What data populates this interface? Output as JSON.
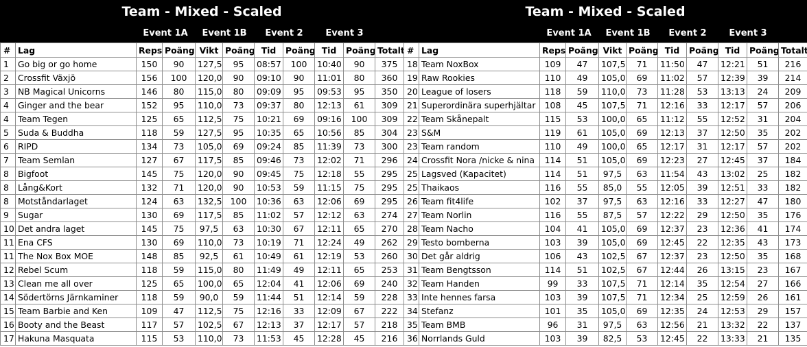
{
  "title": "Team - Mixed - Scaled",
  "events": [
    "Event 1A",
    "Event 1B",
    "Event 2",
    "Event 3"
  ],
  "columns": [
    "#",
    "Lag",
    "Reps",
    "Poäng",
    "Vikt",
    "Poäng",
    "Tid",
    "Poäng",
    "Tid",
    "Poäng",
    "Totalt"
  ],
  "left_rows": [
    [
      "1",
      "Go big or go home",
      "150",
      "90",
      "127,5",
      "95",
      "08:57",
      "100",
      "10:40",
      "90",
      "375"
    ],
    [
      "2",
      "Crossfit Växjö",
      "156",
      "100",
      "120,0",
      "90",
      "09:10",
      "90",
      "11:01",
      "80",
      "360"
    ],
    [
      "3",
      "NB Magical Unicorns",
      "146",
      "80",
      "115,0",
      "80",
      "09:09",
      "95",
      "09:53",
      "95",
      "350"
    ],
    [
      "4",
      "Ginger and the bear",
      "152",
      "95",
      "110,0",
      "73",
      "09:37",
      "80",
      "12:13",
      "61",
      "309"
    ],
    [
      "4",
      "Team Tegen",
      "125",
      "65",
      "112,5",
      "75",
      "10:21",
      "69",
      "09:16",
      "100",
      "309"
    ],
    [
      "5",
      "Suda & Buddha",
      "118",
      "59",
      "127,5",
      "95",
      "10:35",
      "65",
      "10:56",
      "85",
      "304"
    ],
    [
      "6",
      "RIPD",
      "134",
      "73",
      "105,0",
      "69",
      "09:24",
      "85",
      "11:39",
      "73",
      "300"
    ],
    [
      "7",
      "Team Semlan",
      "127",
      "67",
      "117,5",
      "85",
      "09:46",
      "73",
      "12:02",
      "71",
      "296"
    ],
    [
      "8",
      "Bigfoot",
      "145",
      "75",
      "120,0",
      "90",
      "09:45",
      "75",
      "12:18",
      "55",
      "295"
    ],
    [
      "8",
      "Lång&Kort",
      "132",
      "71",
      "120,0",
      "90",
      "10:53",
      "59",
      "11:15",
      "75",
      "295"
    ],
    [
      "8",
      "Motståndarlaget",
      "124",
      "63",
      "132,5",
      "100",
      "10:36",
      "63",
      "12:06",
      "69",
      "295"
    ],
    [
      "9",
      "Sugar",
      "130",
      "69",
      "117,5",
      "85",
      "11:02",
      "57",
      "12:12",
      "63",
      "274"
    ],
    [
      "10",
      "Det andra laget",
      "145",
      "75",
      "97,5",
      "63",
      "10:30",
      "67",
      "12:11",
      "65",
      "270"
    ],
    [
      "11",
      "Ena CFS",
      "130",
      "69",
      "110,0",
      "73",
      "10:19",
      "71",
      "12:24",
      "49",
      "262"
    ],
    [
      "11",
      "The Nox Box MOE",
      "148",
      "85",
      "92,5",
      "61",
      "10:49",
      "61",
      "12:19",
      "53",
      "260"
    ],
    [
      "12",
      "Rebel Scum",
      "118",
      "59",
      "115,0",
      "80",
      "11:49",
      "49",
      "12:11",
      "65",
      "253"
    ],
    [
      "13",
      "Clean me all over",
      "125",
      "65",
      "100,0",
      "65",
      "12:04",
      "41",
      "12:06",
      "69",
      "240"
    ],
    [
      "14",
      "Södertörns Järnkaminer",
      "118",
      "59",
      "90,0",
      "59",
      "11:44",
      "51",
      "12:14",
      "59",
      "228"
    ],
    [
      "15",
      "Team Barbie and Ken",
      "109",
      "47",
      "112,5",
      "75",
      "12:16",
      "33",
      "12:09",
      "67",
      "222"
    ],
    [
      "16",
      "Booty and the Beast",
      "117",
      "57",
      "102,5",
      "67",
      "12:13",
      "37",
      "12:17",
      "57",
      "218"
    ],
    [
      "17",
      "Hakuna Masquata",
      "115",
      "53",
      "110,0",
      "73",
      "11:53",
      "45",
      "12:28",
      "45",
      "216"
    ]
  ],
  "right_rows": [
    [
      "18",
      "Team NoxBox",
      "109",
      "47",
      "107,5",
      "71",
      "11:50",
      "47",
      "12:21",
      "51",
      "216"
    ],
    [
      "19",
      "Raw Rookies",
      "110",
      "49",
      "105,0",
      "69",
      "11:02",
      "57",
      "12:39",
      "39",
      "214"
    ],
    [
      "20",
      "League of losers",
      "118",
      "59",
      "110,0",
      "73",
      "11:28",
      "53",
      "13:13",
      "24",
      "209"
    ],
    [
      "21",
      "Superordinära superhjältar",
      "108",
      "45",
      "107,5",
      "71",
      "12:16",
      "33",
      "12:17",
      "57",
      "206"
    ],
    [
      "22",
      "Team Skånepalt",
      "115",
      "53",
      "100,0",
      "65",
      "11:12",
      "55",
      "12:52",
      "31",
      "204"
    ],
    [
      "23",
      "S&M",
      "119",
      "61",
      "105,0",
      "69",
      "12:13",
      "37",
      "12:50",
      "35",
      "202"
    ],
    [
      "23",
      "Team random",
      "110",
      "49",
      "100,0",
      "65",
      "12:17",
      "31",
      "12:17",
      "57",
      "202"
    ],
    [
      "24",
      "Crossfit Nora /nicke & nina",
      "114",
      "51",
      "105,0",
      "69",
      "12:23",
      "27",
      "12:45",
      "37",
      "184"
    ],
    [
      "25",
      "Lagsved (Kapacitet)",
      "114",
      "51",
      "97,5",
      "63",
      "11:54",
      "43",
      "13:02",
      "25",
      "182"
    ],
    [
      "25",
      "Thaikaos",
      "116",
      "55",
      "85,0",
      "55",
      "12:05",
      "39",
      "12:51",
      "33",
      "182"
    ],
    [
      "26",
      "Team fit4life",
      "102",
      "37",
      "97,5",
      "63",
      "12:16",
      "33",
      "12:27",
      "47",
      "180"
    ],
    [
      "27",
      "Team Norlin",
      "116",
      "55",
      "87,5",
      "57",
      "12:22",
      "29",
      "12:50",
      "35",
      "176"
    ],
    [
      "28",
      "Team Nacho",
      "104",
      "41",
      "105,0",
      "69",
      "12:37",
      "23",
      "12:36",
      "41",
      "174"
    ],
    [
      "29",
      "Testo bomberna",
      "103",
      "39",
      "105,0",
      "69",
      "12:45",
      "22",
      "12:35",
      "43",
      "173"
    ],
    [
      "30",
      "Det går aldrig",
      "106",
      "43",
      "102,5",
      "67",
      "12:37",
      "23",
      "12:50",
      "35",
      "168"
    ],
    [
      "31",
      "Team Bengtsson",
      "114",
      "51",
      "102,5",
      "67",
      "12:44",
      "26",
      "13:15",
      "23",
      "167"
    ],
    [
      "32",
      "Team Handen",
      "99",
      "33",
      "107,5",
      "71",
      "12:14",
      "35",
      "12:54",
      "27",
      "166"
    ],
    [
      "33",
      "Inte hennes farsa",
      "103",
      "39",
      "107,5",
      "71",
      "12:34",
      "25",
      "12:59",
      "26",
      "161"
    ],
    [
      "34",
      "Stefanz",
      "101",
      "35",
      "105,0",
      "69",
      "12:35",
      "24",
      "12:53",
      "29",
      "157"
    ],
    [
      "35",
      "Team BMB",
      "96",
      "31",
      "97,5",
      "63",
      "12:56",
      "21",
      "13:32",
      "22",
      "137"
    ],
    [
      "36",
      "Norrlands Guld",
      "103",
      "39",
      "82,5",
      "53",
      "12:45",
      "22",
      "13:33",
      "21",
      "135"
    ]
  ]
}
